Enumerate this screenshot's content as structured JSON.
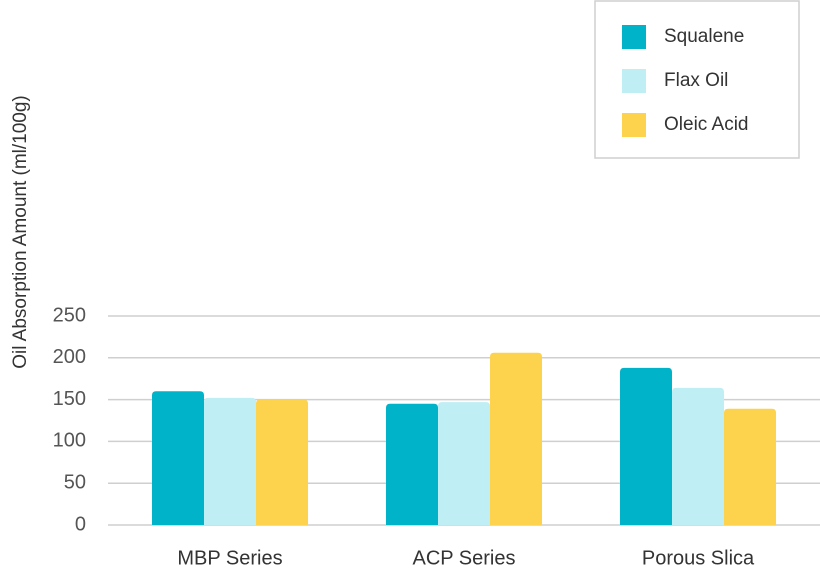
{
  "chart_data": {
    "type": "bar",
    "title": "",
    "xlabel": "",
    "ylabel": "Oil Absorption Amount (ml/100g)",
    "ylim": [
      0,
      270
    ],
    "yticks": [
      0,
      50,
      100,
      150,
      200,
      250
    ],
    "grid": true,
    "legend_position": "top-right",
    "categories": [
      "MBP Series",
      "ACP Series",
      "Porous Slica"
    ],
    "series": [
      {
        "name": "Squalene",
        "color": "#00b3c8",
        "values": [
          160,
          145,
          188
        ]
      },
      {
        "name": "Flax Oil",
        "color": "#bfeef5",
        "values": [
          152,
          147,
          164
        ]
      },
      {
        "name": "Oleic Acid",
        "color": "#fdd24c",
        "values": [
          150,
          206,
          139
        ]
      }
    ]
  }
}
